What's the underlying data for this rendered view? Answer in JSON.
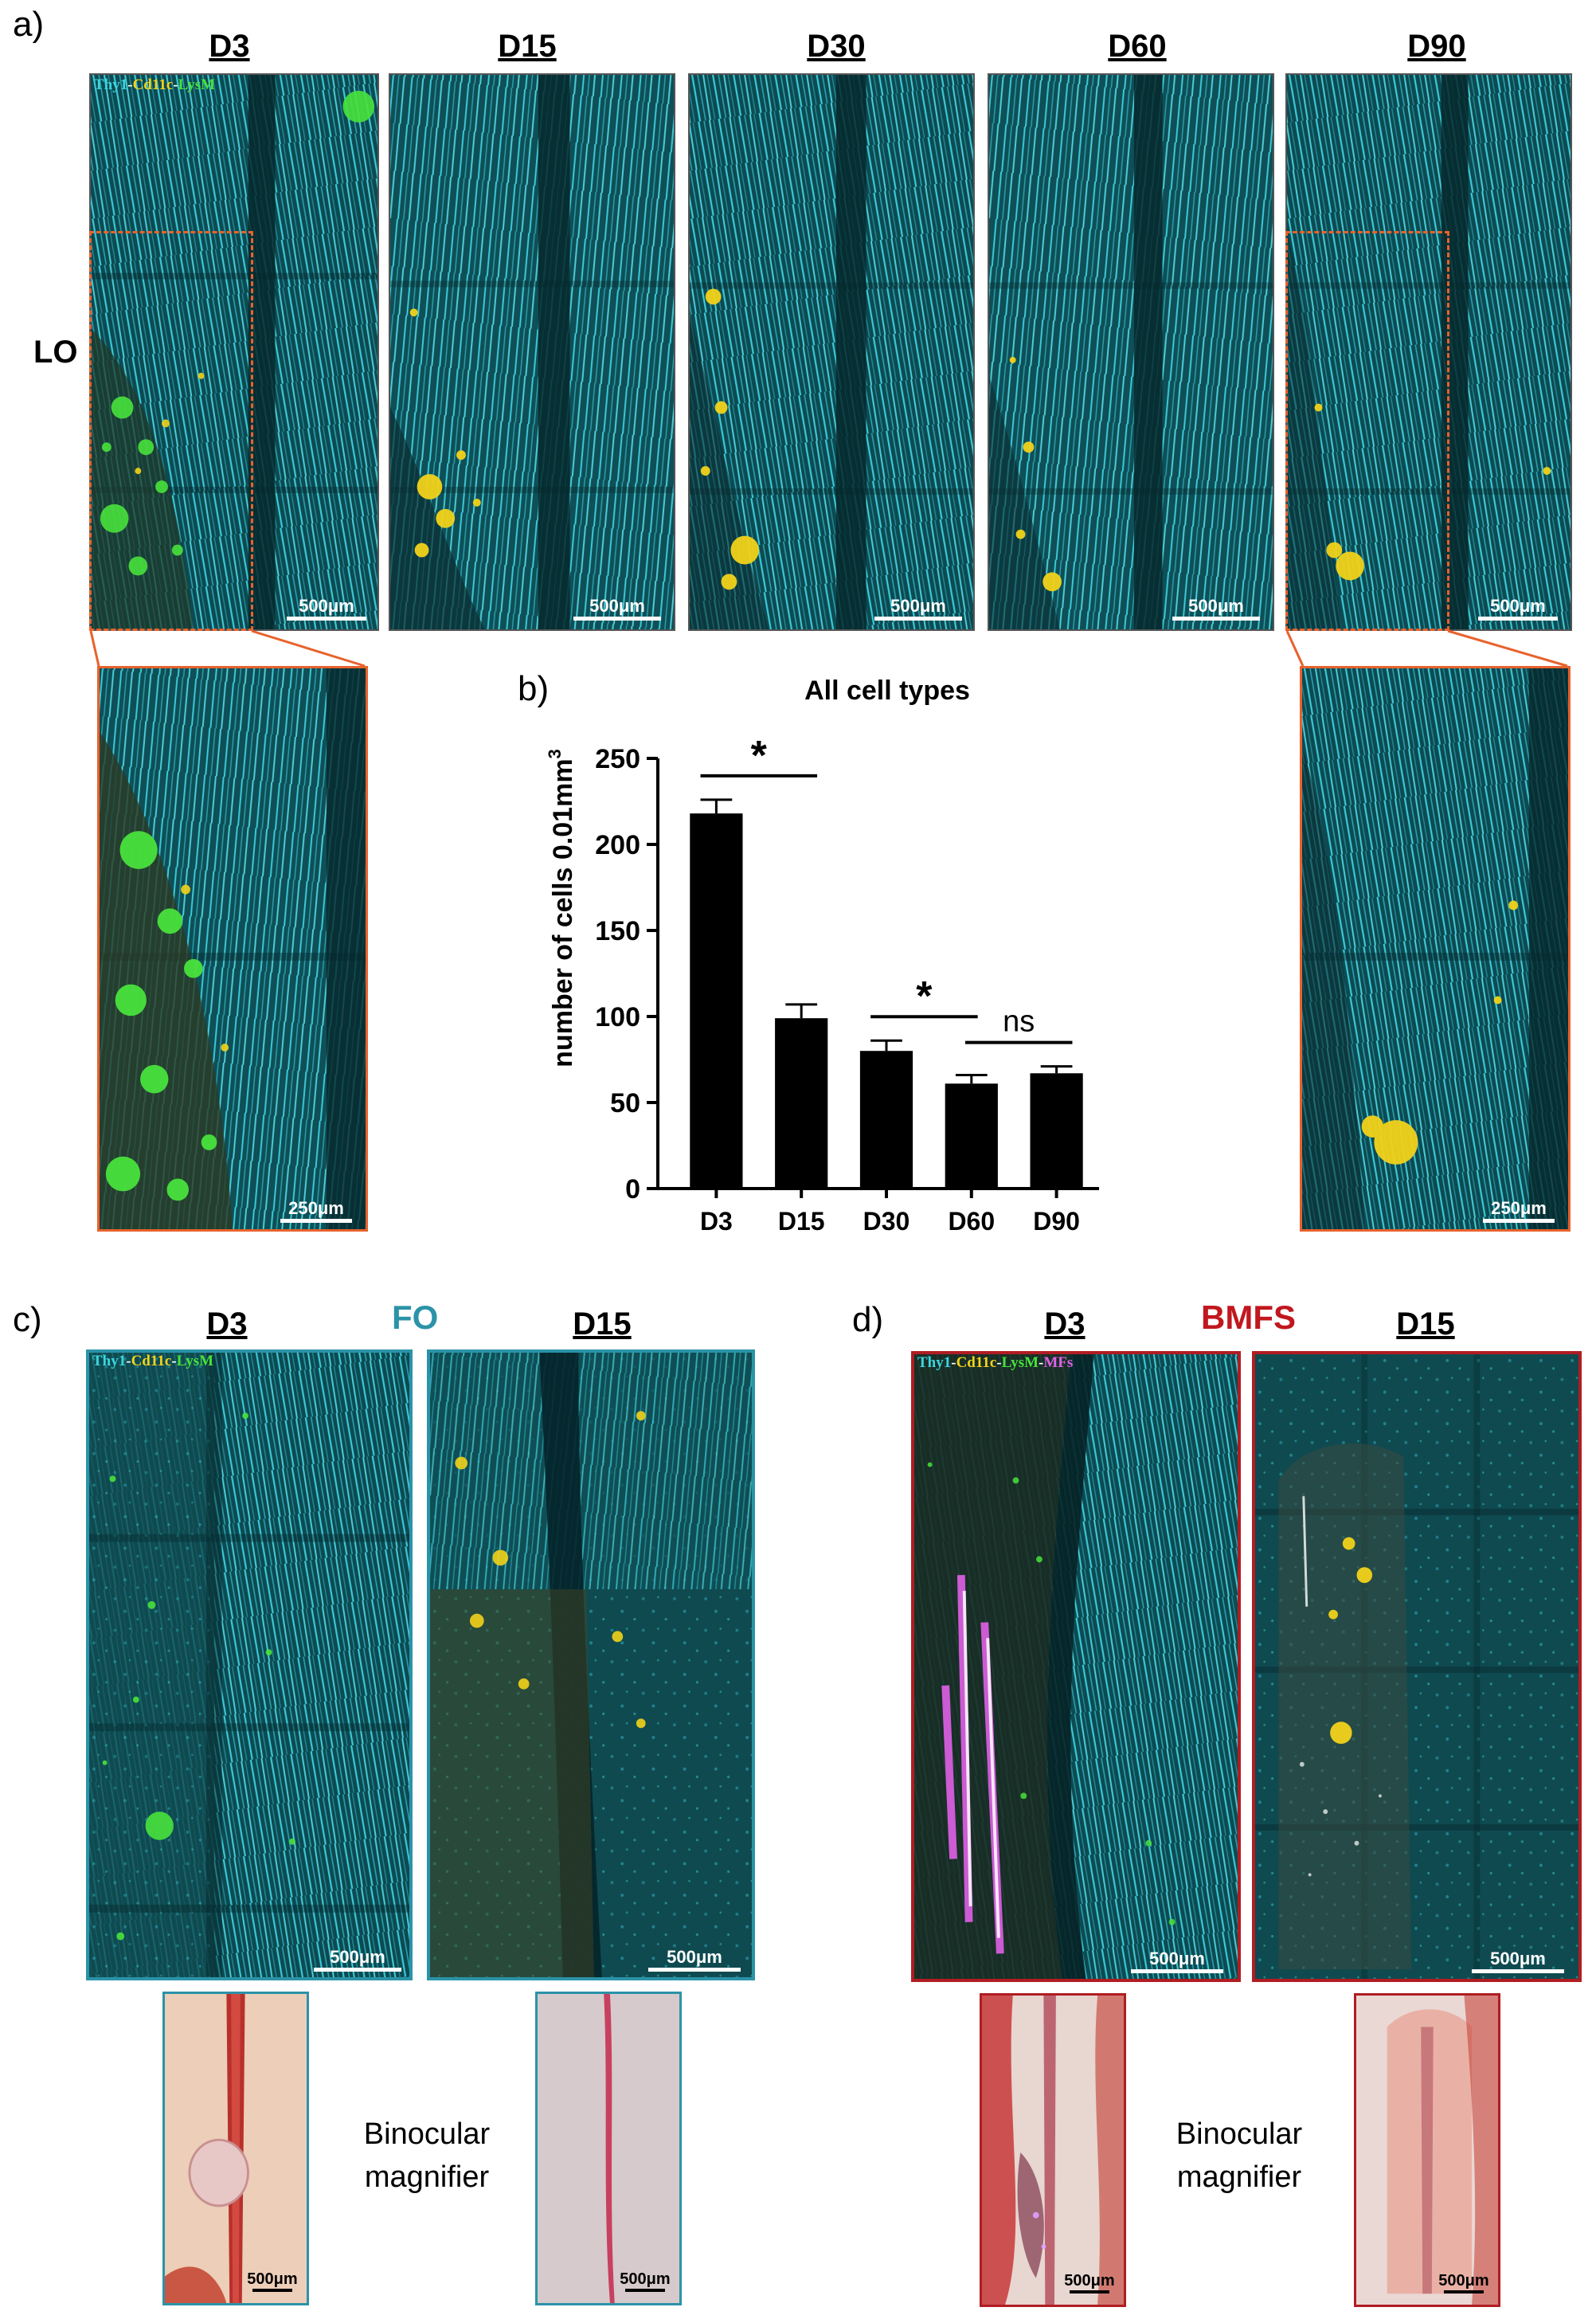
{
  "panels": {
    "a": "a)",
    "b": "b)",
    "c": "c)",
    "d": "d)"
  },
  "row_label": "LO",
  "timepoints_a": [
    "D3",
    "D15",
    "D30",
    "D60",
    "D90"
  ],
  "stain_a": {
    "thy1": "Thy1",
    "cd11c": "Cd11c",
    "lysm": "LysM",
    "sep": "-"
  },
  "stain_d_extra": "MFs",
  "scale_500": "500μm",
  "scale_250": "250μm",
  "fo": {
    "title": "FO",
    "d3": "D3",
    "d15": "D15"
  },
  "bmfs": {
    "title": "BMFS",
    "d3": "D3",
    "d15": "D15"
  },
  "binocular": {
    "line1": "Binocular",
    "line2": "magnifier"
  },
  "colors": {
    "thy1": "#3ad6e0",
    "cd11c": "#f2d21a",
    "lysm": "#48e23c",
    "mfs": "#e060e8",
    "orange_frame": "#e8622c",
    "fo_frame": "#2b93a8",
    "bmfs_frame": "#b01d22"
  },
  "chart_data": {
    "type": "bar",
    "title": "All cell types",
    "ylabel": "number of cells 0.01mm",
    "ylabel_sup": "3",
    "xlabel": "",
    "categories": [
      "D3",
      "D15",
      "D30",
      "D60",
      "D90"
    ],
    "values": [
      218,
      99,
      80,
      61,
      67
    ],
    "errors": [
      8,
      8,
      6,
      5,
      4
    ],
    "ylim": [
      0,
      250
    ],
    "yticks": [
      "0",
      "50",
      "100",
      "150",
      "200",
      "250"
    ],
    "grid": false,
    "significance": [
      {
        "from": "D3",
        "to": "D15",
        "label": "*"
      },
      {
        "from": "D30",
        "to": "D60",
        "label": "*"
      },
      {
        "from": "D60",
        "to": "D90",
        "label": "ns"
      }
    ]
  }
}
